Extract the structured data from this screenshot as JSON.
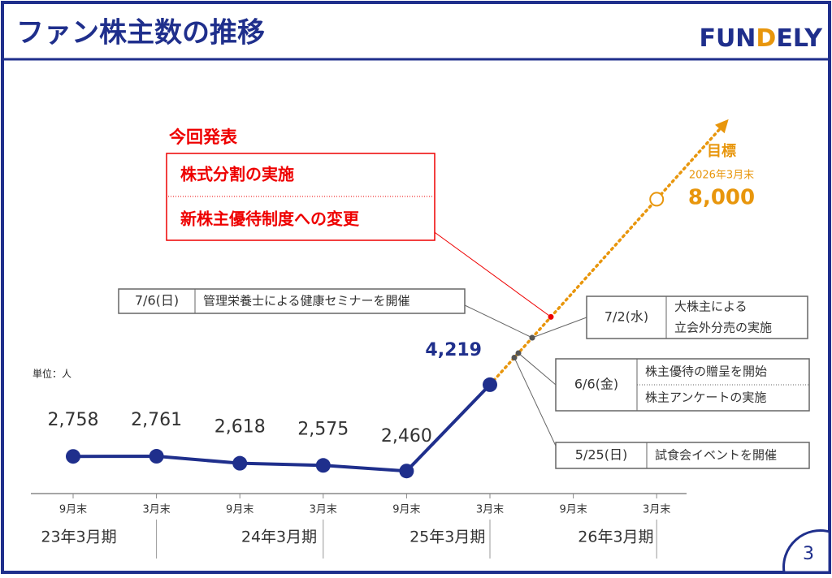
{
  "header": {
    "title": "ファン株主数の推移",
    "logo": [
      "FUN",
      "D",
      "ELY"
    ]
  },
  "page_number": "3",
  "chart_data": {
    "type": "line",
    "unit_label": "単位：人",
    "categories": [
      "9月末",
      "3月末",
      "9月末",
      "3月末",
      "9月末",
      "3月末",
      "9月末",
      "3月末"
    ],
    "periods": [
      "23年3月期",
      "24年3月期",
      "25年3月期",
      "26年3月期"
    ],
    "series": [
      {
        "name": "ファン株主数",
        "color": "#1f2f8c",
        "values": [
          2758,
          2761,
          2618,
          2575,
          2460,
          4219,
          null,
          null
        ],
        "value_labels": [
          "2,758",
          "2,761",
          "2,618",
          "2,575",
          "2,460",
          "4,219",
          null,
          null
        ]
      }
    ],
    "target": {
      "label": "目標",
      "date": "2026年3月末",
      "value": 8000,
      "value_label": "8,000",
      "color": "#e8960c"
    },
    "ylim": [
      2000,
      9000
    ],
    "announcement": {
      "title": "今回発表",
      "items": [
        "株式分割の実施",
        "新株主優待制度への変更"
      ]
    },
    "events": [
      {
        "date": "7/6(日)",
        "items": [
          "管理栄養士による健康セミナーを開催"
        ]
      },
      {
        "date": "7/2(水)",
        "items": [
          "大株主による",
          "立会外分売の実施"
        ]
      },
      {
        "date": "6/6(金)",
        "items": [
          "株主優待の贈呈を開始",
          "株主アンケートの実施"
        ]
      },
      {
        "date": "5/25(日)",
        "items": [
          "試食会イベントを開催"
        ]
      }
    ]
  }
}
